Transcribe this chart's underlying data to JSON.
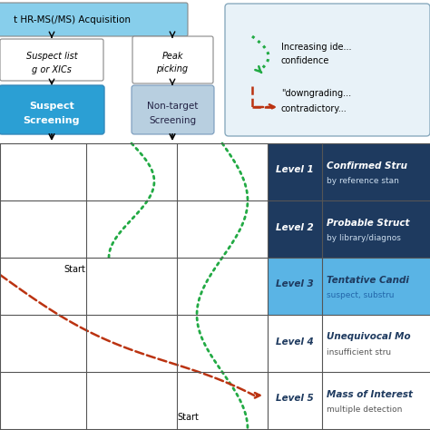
{
  "bg_color": "#ffffff",
  "top_box_color": "#87CEEB",
  "suspect_box_color": "#2B9FD4",
  "nontarget_box_color": "#B8CFE0",
  "legend_box_color": "#E8F2F8",
  "legend_box_border": "#8AABBF",
  "grid_line_color": "#555555",
  "level_dark_bg": "#1E3A5F",
  "level_light_bg": "#5AB4E5",
  "level_white_bg": "#FFFFFF",
  "level_colors": [
    "#1E3A5F",
    "#1E3A5F",
    "#5AB4E5",
    "#FFFFFF",
    "#FFFFFF"
  ],
  "level_text_colors": [
    "#FFFFFF",
    "#FFFFFF",
    "#1E3A5F",
    "#1E3A5F",
    "#1E3A5F"
  ],
  "level_subtitle_colors": [
    "#CCDDEE",
    "#CCDDEE",
    "#2266AA",
    "#555555",
    "#555555"
  ],
  "levels": [
    "Level 1",
    "Level 2",
    "Level 3",
    "Level 4",
    "Level 5"
  ],
  "level_titles": [
    "Confirmed Stru",
    "Probable Struct",
    "Tentative Candi",
    "Unequivocal Mo",
    "Mass of Interest"
  ],
  "level_subtitles": [
    "by reference stan",
    "by library/diagnos",
    "suspect, substru",
    "insufficient stru",
    "multiple detection"
  ],
  "green_curve_color": "#22AA44",
  "red_curve_color": "#BB3311",
  "arrow_color": "#000000"
}
